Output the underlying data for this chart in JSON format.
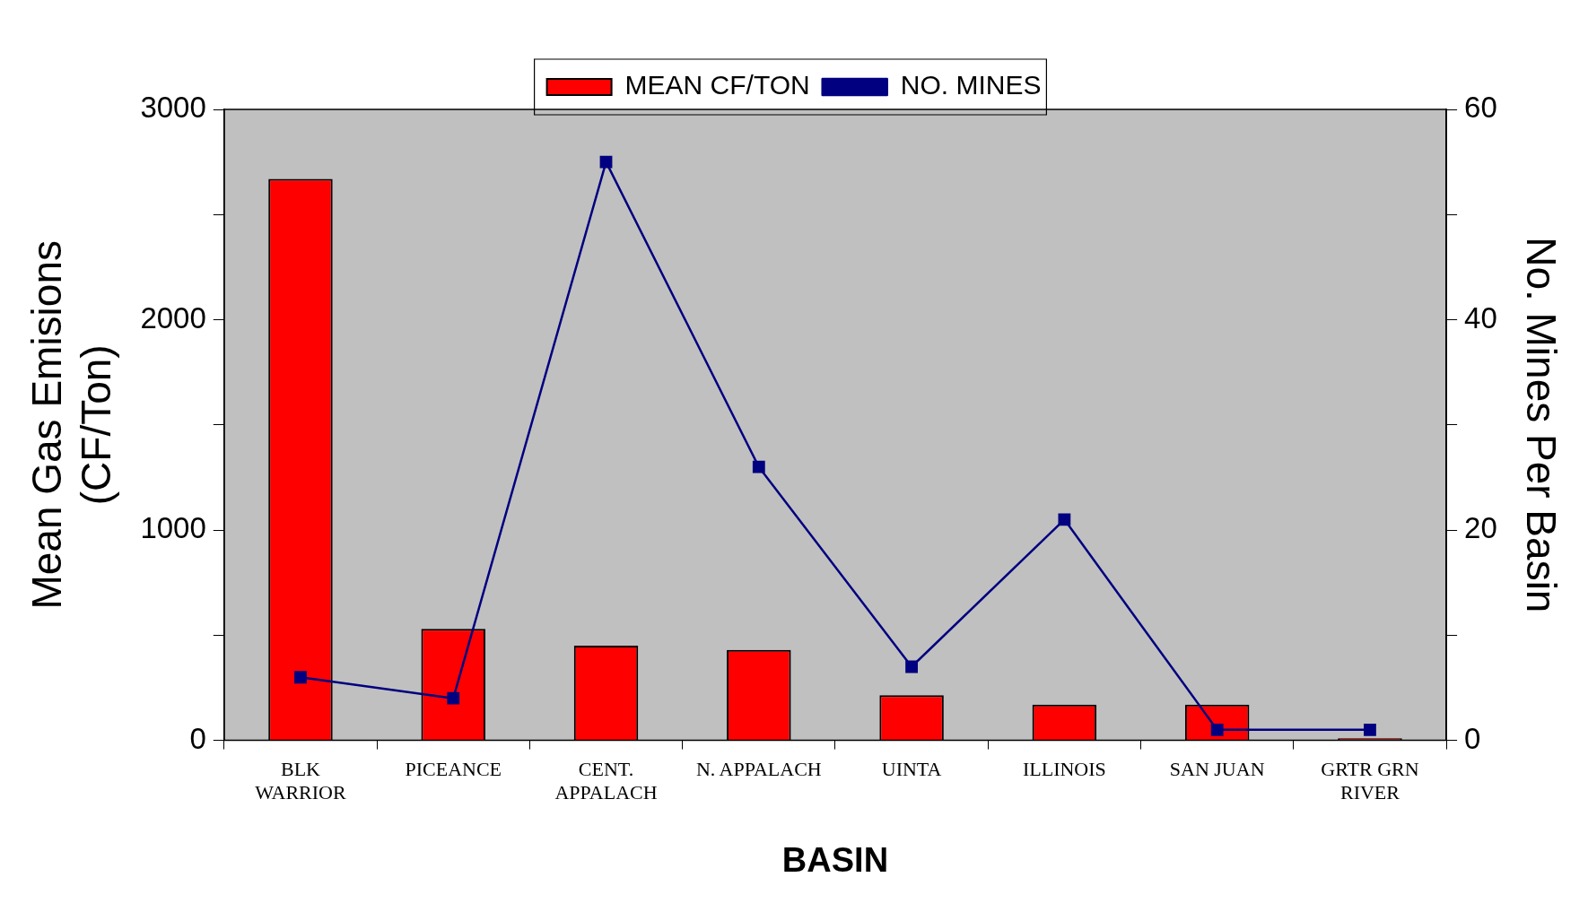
{
  "chart_data": {
    "type": "bar",
    "xlabel": "BASIN",
    "ylabel": "Mean Gas Emisions\n(CF/Ton)",
    "y2label": "No. Mines Per Basin",
    "categories": [
      "BLK\nWARRIOR",
      "PICEANCE",
      "CENT.\nAPPALACH",
      "N. APPALACH",
      "UINTA",
      "ILLINOIS",
      "SAN JUAN",
      "GRTR GRN\nRIVER"
    ],
    "series": [
      {
        "name": "MEAN CF/TON",
        "color": "#ff0000",
        "values": [
          2670,
          530,
          450,
          430,
          215,
          170,
          170,
          10
        ]
      },
      {
        "name": "NO. MINES",
        "type": "line",
        "axis": "y2",
        "color": "#000080",
        "marker": "square",
        "values": [
          6,
          4,
          55,
          26,
          7,
          21,
          1,
          1
        ]
      }
    ],
    "ylim": [
      0,
      3000
    ],
    "yticks": [
      0,
      {
        "value": 500,
        "label": null
      },
      1000,
      {
        "value": 1500,
        "label": null
      },
      2000,
      {
        "value": 2500,
        "label": null
      },
      3000
    ],
    "y2lim": [
      0,
      60
    ],
    "y2ticks": [
      0,
      {
        "value": 10,
        "label": null
      },
      20,
      {
        "value": 30,
        "label": null
      },
      40,
      {
        "value": 50,
        "label": null
      },
      60
    ],
    "grid": false,
    "legend": "top"
  }
}
